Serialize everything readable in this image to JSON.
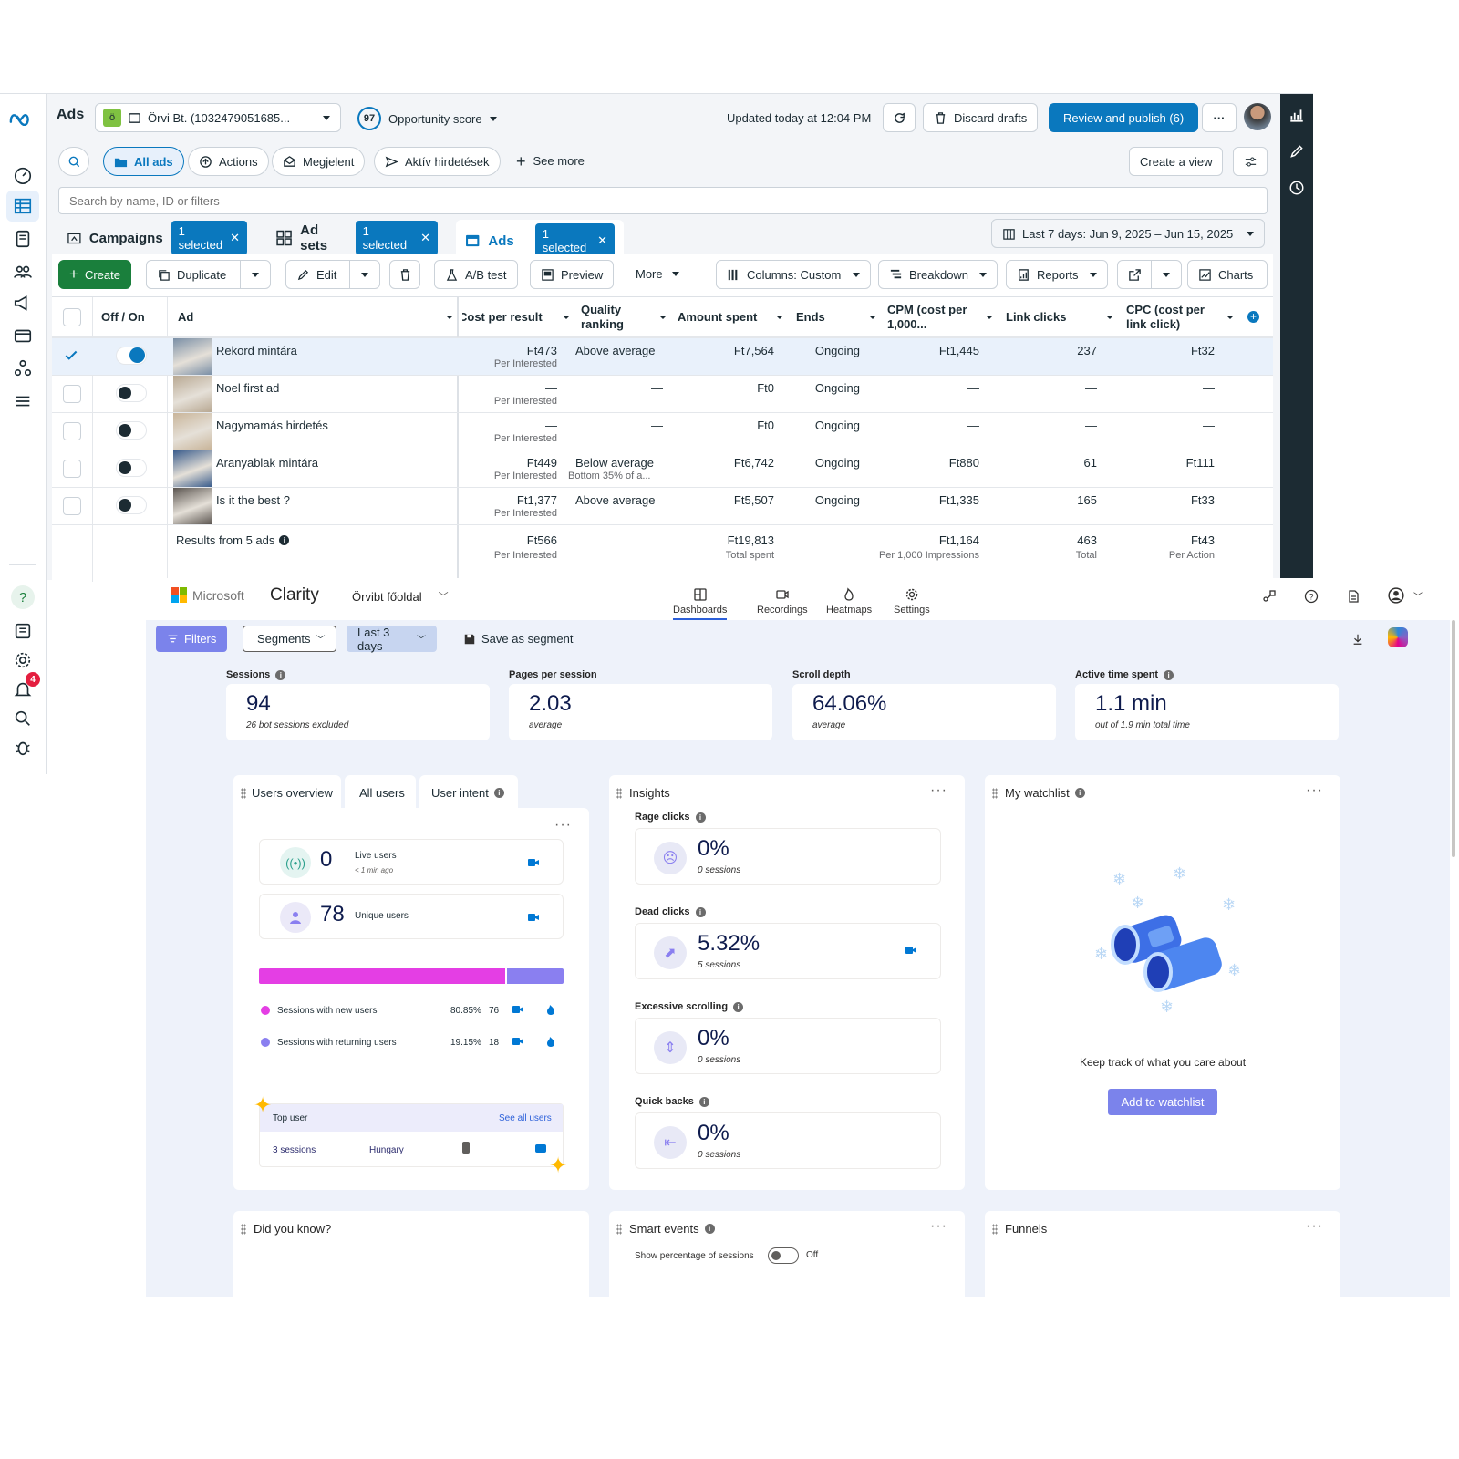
{
  "meta": {
    "app_title": "Ads",
    "account": "Örvi Bt. (1032479051685...",
    "opportunity_score": "97",
    "opportunity_label": "Opportunity score",
    "updated": "Updated today at 12:04 PM",
    "discard": "Discard drafts",
    "publish": "Review and publish (6)",
    "more_dots": "···",
    "rail_badge": "4",
    "filters": {
      "all_ads": "All ads",
      "actions": "Actions",
      "published": "Megjelent",
      "active": "Aktív hirdetések",
      "see_more": "See more",
      "create_view": "Create a view"
    },
    "search_placeholder": "Search by name, ID or filters",
    "levels": {
      "campaigns": "Campaigns",
      "adsets": "Ad sets",
      "ads": "Ads",
      "selected": "1 selected"
    },
    "date_range": "Last 7 days: Jun 9, 2025 – Jun 15, 2025",
    "toolbar": {
      "create": "Create",
      "duplicate": "Duplicate",
      "edit": "Edit",
      "ab_test": "A/B test",
      "preview": "Preview",
      "more": "More",
      "columns": "Columns: Custom",
      "breakdown": "Breakdown",
      "reports": "Reports",
      "charts": "Charts"
    },
    "headers": {
      "offon": "Off / On",
      "ad": "Ad",
      "cpr": "Cost per result",
      "quality": "Quality ranking",
      "amount": "Amount spent",
      "ends": "Ends",
      "cpm": "CPM (cost per 1,000...",
      "clicks": "Link clicks",
      "cpc": "CPC (cost per link click)"
    },
    "rows": [
      {
        "name": "Rekord mintára",
        "cpr": "Ft473",
        "cpr_sub": "Per Interested",
        "quality": "Above average",
        "quality_sub": "",
        "amount": "Ft7,564",
        "ends": "Ongoing",
        "cpm": "Ft1,445",
        "clicks": "237",
        "cpc": "Ft32",
        "on": true,
        "selected": true,
        "thumb": "#7a8fa6"
      },
      {
        "name": "Noel first ad",
        "cpr": "—",
        "cpr_sub": "Per Interested",
        "quality": "—",
        "quality_sub": "",
        "amount": "Ft0",
        "ends": "Ongoing",
        "cpm": "—",
        "clicks": "—",
        "cpc": "—",
        "on": false,
        "selected": false,
        "thumb": "#b8a892"
      },
      {
        "name": "Nagymamás hirdetés",
        "cpr": "—",
        "cpr_sub": "Per Interested",
        "quality": "—",
        "quality_sub": "",
        "amount": "Ft0",
        "ends": "Ongoing",
        "cpm": "—",
        "clicks": "—",
        "cpc": "—",
        "on": false,
        "selected": false,
        "thumb": "#c9b59a"
      },
      {
        "name": "Aranyablak mintára",
        "cpr": "Ft449",
        "cpr_sub": "Per Interested",
        "quality": "Below average",
        "quality_sub": "Bottom 35% of a...",
        "amount": "Ft6,742",
        "ends": "Ongoing",
        "cpm": "Ft880",
        "clicks": "61",
        "cpc": "Ft111",
        "on": false,
        "selected": false,
        "thumb": "#3a5c8c"
      },
      {
        "name": "Is it the best ?",
        "cpr": "Ft1,377",
        "cpr_sub": "Per Interested",
        "quality": "Above average",
        "quality_sub": "",
        "amount": "Ft5,507",
        "ends": "Ongoing",
        "cpm": "Ft1,335",
        "clicks": "165",
        "cpc": "Ft33",
        "on": false,
        "selected": false,
        "thumb": "#5b5550"
      }
    ],
    "totals": {
      "label": "Results from 5 ads",
      "cpr": "Ft566",
      "cpr_sub": "Per Interested",
      "amount": "Ft19,813",
      "amount_sub": "Total spent",
      "cpm": "Ft1,164",
      "cpm_sub": "Per 1,000 Impressions",
      "clicks": "463",
      "clicks_sub": "Total",
      "cpc": "Ft43",
      "cpc_sub": "Per Action"
    }
  },
  "clarity": {
    "brand": "Microsoft",
    "product": "Clarity",
    "project": "Örvibt főoldal",
    "nav": [
      "Dashboards",
      "Recordings",
      "Heatmaps",
      "Settings"
    ],
    "filters": "Filters",
    "segments": "Segments",
    "range": "Last 3 days",
    "save_segment": "Save as segment",
    "metrics": [
      {
        "label": "Sessions",
        "value": "94",
        "sub": "26 bot sessions excluded"
      },
      {
        "label": "Pages per session",
        "value": "2.03",
        "sub": "average"
      },
      {
        "label": "Scroll depth",
        "value": "64.06%",
        "sub": "average"
      },
      {
        "label": "Active time spent",
        "value": "1.1 min",
        "sub": "out of 1.9 min total time"
      }
    ],
    "users": {
      "tabs": [
        "Users overview",
        "All users",
        "User intent"
      ],
      "live_value": "0",
      "live_label": "Live users",
      "live_sub": "< 1 min ago",
      "unique_value": "78",
      "unique_label": "Unique users",
      "new_label": "Sessions with new users",
      "new_pct": "80.85%",
      "new_count": "76",
      "new_fraction": 0.8085,
      "ret_label": "Sessions with returning users",
      "ret_pct": "19.15%",
      "ret_count": "18",
      "top_user": "Top user",
      "see_all": "See all users",
      "top_sessions": "3 sessions",
      "top_country": "Hungary",
      "new_color": "#e43ee4",
      "ret_color": "#8a7ff0"
    },
    "insights": {
      "title": "Insights",
      "items": [
        {
          "label": "Rage clicks",
          "value": "0%",
          "sub": "0 sessions"
        },
        {
          "label": "Dead clicks",
          "value": "5.32%",
          "sub": "5 sessions"
        },
        {
          "label": "Excessive scrolling",
          "value": "0%",
          "sub": "0 sessions"
        },
        {
          "label": "Quick backs",
          "value": "0%",
          "sub": "0 sessions"
        }
      ]
    },
    "watchlist": {
      "title": "My watchlist",
      "text": "Keep track of what you care about",
      "button": "Add to watchlist"
    },
    "bottom": {
      "did_you_know": "Did you know?",
      "smart_events": "Smart events",
      "show_pct": "Show percentage of sessions",
      "off": "Off",
      "funnels": "Funnels"
    }
  }
}
